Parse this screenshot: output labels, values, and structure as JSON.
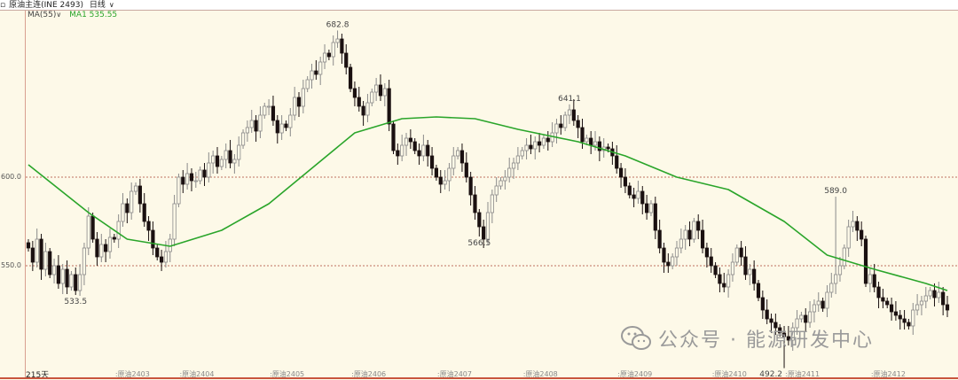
{
  "header": {
    "instrument": "原油主连(INE 2493)",
    "period": "日线"
  },
  "legend": {
    "indicator": "MA(55)",
    "series_label": "MA1",
    "series_value": "535.55"
  },
  "colors": {
    "ma": "#2aa52a",
    "down": "#1a1010",
    "up_border": "#8a8a8a",
    "background": "#fdf9e8",
    "gridline": "#b05040"
  },
  "y_axis": {
    "labels": [
      {
        "text": "600.0",
        "value": 600
      },
      {
        "text": "550.0",
        "value": 550
      }
    ]
  },
  "x_axis": {
    "days_label": "215天",
    "ticks": [
      {
        "label": "原油2403",
        "index": 20
      },
      {
        "label": "原油2404",
        "index": 35
      },
      {
        "label": "原油2405",
        "index": 56
      },
      {
        "label": "原油2406",
        "index": 75
      },
      {
        "label": "原油2407",
        "index": 95
      },
      {
        "label": "原油2408",
        "index": 115
      },
      {
        "label": "原油2409",
        "index": 137
      },
      {
        "label": "原油2410",
        "index": 159
      },
      {
        "label": "原油2411",
        "index": 176
      },
      {
        "label": "原油2412",
        "index": 196
      }
    ]
  },
  "watermark": {
    "text": "公众号 · 能源研发中心",
    "icon": "wechat-icon"
  },
  "chart_data": {
    "type": "candlestick",
    "closes": [
      560,
      552,
      565,
      548,
      558,
      545,
      550,
      540,
      548,
      538,
      545,
      536,
      545,
      560,
      578,
      565,
      555,
      562,
      558,
      566,
      565,
      575,
      585,
      580,
      592,
      595,
      585,
      575,
      570,
      560,
      555,
      552,
      558,
      565,
      585,
      600,
      596,
      602,
      598,
      598,
      604,
      600,
      608,
      612,
      606,
      610,
      615,
      608,
      610,
      618,
      625,
      628,
      632,
      626,
      635,
      640,
      640,
      632,
      625,
      630,
      628,
      635,
      645,
      640,
      650,
      655,
      660,
      658,
      665,
      670,
      668,
      676,
      678,
      670,
      662,
      650,
      645,
      640,
      635,
      642,
      648,
      652,
      646,
      650,
      630,
      615,
      612,
      618,
      622,
      620,
      615,
      612,
      618,
      612,
      605,
      600,
      596,
      598,
      605,
      612,
      615,
      608,
      600,
      590,
      580,
      572,
      565,
      580,
      590,
      595,
      598,
      600,
      605,
      608,
      612,
      615,
      618,
      616,
      620,
      618,
      622,
      620,
      625,
      630,
      628,
      635,
      638,
      632,
      628,
      620,
      622,
      618,
      620,
      615,
      617,
      616,
      612,
      605,
      600,
      595,
      590,
      588,
      592,
      585,
      580,
      585,
      570,
      560,
      552,
      550,
      555,
      560,
      565,
      570,
      565,
      575,
      570,
      560,
      555,
      550,
      545,
      540,
      538,
      545,
      552,
      560,
      555,
      545,
      548,
      540,
      532,
      525,
      520,
      518,
      515,
      512,
      510,
      508,
      515,
      520,
      522,
      518,
      524,
      528,
      530,
      526,
      535,
      540,
      545,
      550,
      560,
      572,
      575,
      570,
      565,
      540,
      545,
      538,
      532,
      530,
      528,
      524,
      522,
      520,
      518,
      516,
      525,
      528,
      530,
      533,
      536,
      532,
      535,
      528,
      525
    ],
    "ma": {
      "name": "MA1",
      "points": [
        [
          0,
          607
        ],
        [
          14,
          580
        ],
        [
          23,
          565
        ],
        [
          33,
          561
        ],
        [
          45,
          570
        ],
        [
          56,
          585
        ],
        [
          66,
          605
        ],
        [
          76,
          625
        ],
        [
          87,
          633
        ],
        [
          95,
          634
        ],
        [
          104,
          633
        ],
        [
          114,
          627
        ],
        [
          128,
          620
        ],
        [
          139,
          612
        ],
        [
          151,
          600
        ],
        [
          163,
          593
        ],
        [
          176,
          575
        ],
        [
          186,
          556
        ],
        [
          197,
          548
        ],
        [
          209,
          540
        ],
        [
          214,
          536
        ]
      ]
    },
    "annotations": [
      {
        "text": "533.5",
        "index": 11,
        "value": 533.5,
        "type": "low"
      },
      {
        "text": "682.8",
        "index": 72,
        "value": 682.8,
        "type": "high"
      },
      {
        "text": "566.5",
        "index": 105,
        "value": 566.5,
        "type": "low"
      },
      {
        "text": "641.1",
        "index": 126,
        "value": 641.1,
        "type": "high"
      },
      {
        "text": "492.2",
        "index": 176,
        "value": 492.2,
        "type": "low"
      },
      {
        "text": "589.0",
        "index": 188,
        "value": 589.0,
        "type": "high"
      }
    ],
    "reference_lines": [
      600,
      550
    ]
  }
}
